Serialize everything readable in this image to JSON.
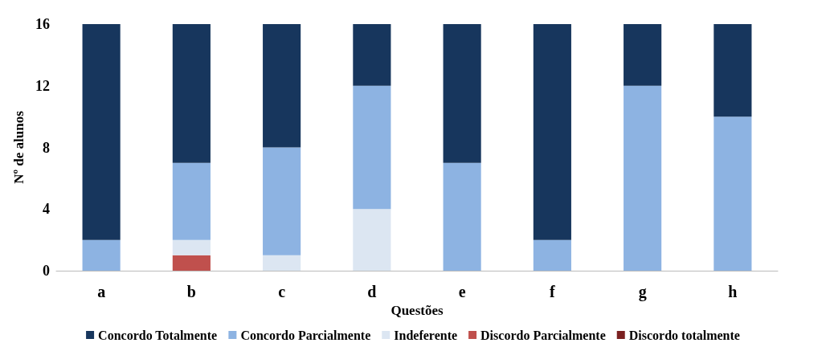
{
  "chart_data": {
    "type": "bar",
    "stacked": true,
    "xlabel": "Questões",
    "ylabel": "Nº de alunos",
    "categories": [
      "a",
      "b",
      "c",
      "d",
      "e",
      "f",
      "g",
      "h"
    ],
    "series": [
      {
        "name": "Discordo totalmente",
        "color": "#7b2121",
        "values": [
          0,
          0,
          0,
          0,
          0,
          0,
          0,
          0
        ]
      },
      {
        "name": "Discordo Parcialmente",
        "color": "#c0504d",
        "values": [
          0,
          1,
          0,
          0,
          0,
          0,
          0,
          0
        ]
      },
      {
        "name": "Indeferente",
        "color": "#dce6f2",
        "values": [
          0,
          1,
          1,
          4,
          0,
          0,
          0,
          0
        ]
      },
      {
        "name": "Concordo Parcialmente",
        "color": "#8db3e2",
        "values": [
          2,
          5,
          7,
          8,
          7,
          2,
          12,
          10
        ]
      },
      {
        "name": "Concordo Totalmente",
        "color": "#17365d",
        "values": [
          14,
          9,
          8,
          4,
          9,
          14,
          4,
          6
        ]
      }
    ],
    "ylim": [
      0,
      16
    ],
    "yticks": [
      0,
      4,
      8,
      12,
      16
    ],
    "grid": false,
    "legend": "bottom"
  }
}
